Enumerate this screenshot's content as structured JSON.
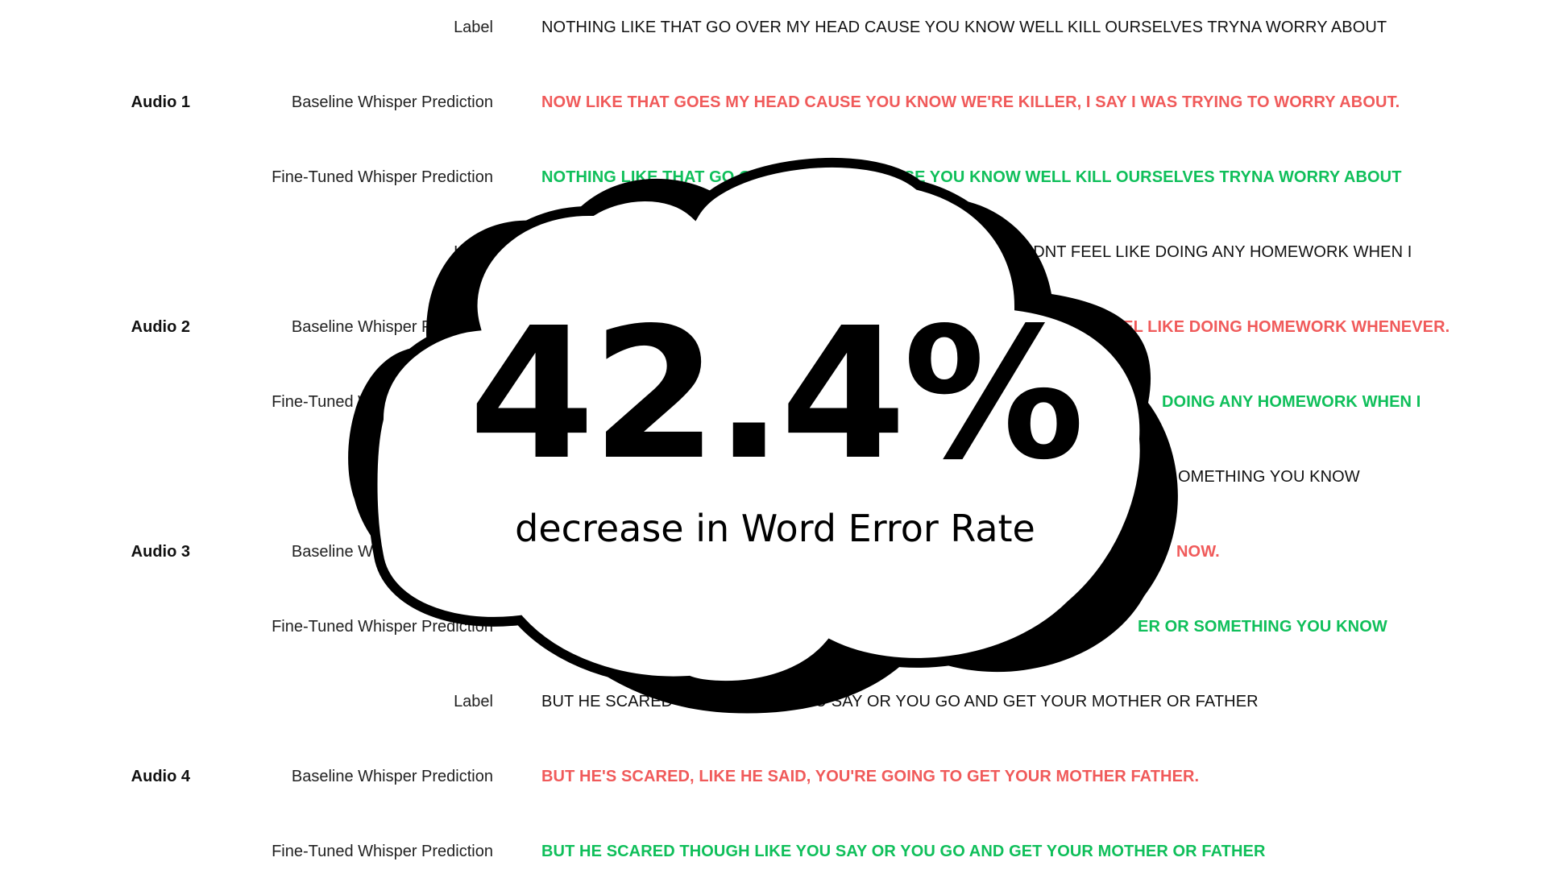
{
  "groups": [
    {
      "audio": "Audio 1",
      "label_kind": "Label",
      "baseline_kind": "Baseline Whisper Prediction",
      "finetuned_kind": "Fine-Tuned Whisper Prediction",
      "label_text": "NOTHING LIKE THAT GO OVER MY HEAD CAUSE YOU KNOW WELL KILL OURSELVES TRYNA WORRY ABOUT",
      "baseline_text": "NOW LIKE THAT GOES MY HEAD CAUSE YOU KNOW WE'RE KILLER, I SAY I WAS TRYING TO WORRY ABOUT.",
      "finetuned_text": "NOTHING LIKE THAT GO OVER MY HEAD CAUSE YOU KNOW WELL KILL OURSELVES TRYNA WORRY ABOUT"
    },
    {
      "audio": "Audio 2",
      "label_kind": "Label",
      "baseline_kind": "Baseline Whisper Prediction",
      "finetuned_kind": "Fine-Tuned Whisper Prediction",
      "label_text": "DIDNT FEEL LIKE DOING ANY HOMEWORK WHEN I",
      "baseline_text": "N'T FEEL LIKE DOING HOMEWORK WHENEVER.",
      "finetuned_text": "DOING ANY HOMEWORK WHEN I"
    },
    {
      "audio": "Audio 3",
      "label_kind": "Label",
      "baseline_kind": "Baseline Whisper Prediction",
      "finetuned_kind": "Fine-Tuned Whisper Prediction",
      "label_text": "OMETHING YOU KNOW",
      "baseline_text": "NOW.",
      "finetuned_text": "ER OR SOMETHING YOU KNOW"
    },
    {
      "audio": "Audio 4",
      "label_kind": "Label",
      "baseline_kind": "Baseline Whisper Prediction",
      "finetuned_kind": "Fine-Tuned Whisper Prediction",
      "label_text": "BUT HE SCARED THOUGH LIKE YOU SAY OR YOU GO AND GET YOUR MOTHER OR FATHER",
      "baseline_text": "BUT HE'S SCARED, LIKE HE SAID, YOU'RE GOING TO GET YOUR MOTHER FATHER.",
      "finetuned_text": "BUT HE SCARED THOUGH LIKE YOU SAY OR YOU GO AND GET YOUR MOTHER OR FATHER"
    }
  ],
  "highlight": {
    "value": "42.4%",
    "caption": "decrease in Word Error Rate"
  },
  "colors": {
    "baseline": "#f05a5a",
    "finetuned": "#0fbf5a",
    "label": "#111111",
    "cloud_fill": "#ffffff",
    "cloud_outline": "#000000"
  }
}
